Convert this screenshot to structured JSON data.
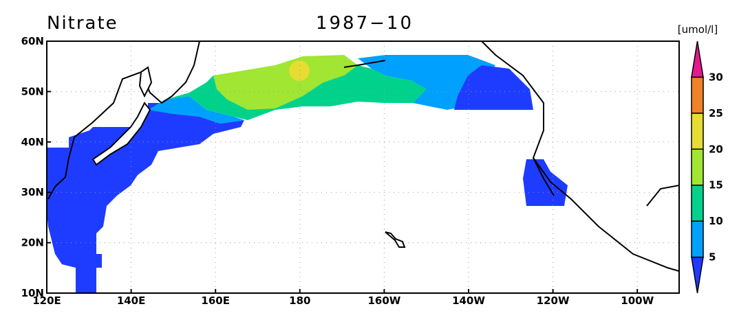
{
  "map": {
    "title": "Nitrate",
    "date": "1987−10",
    "unit": "[umol/l]",
    "lon_labels": [
      "120E",
      "140E",
      "160E",
      "180",
      "160W",
      "140W",
      "120W",
      "100W"
    ],
    "lat_labels": [
      "60N",
      "50N",
      "40N",
      "30N",
      "20N",
      "10N"
    ],
    "colorbar": {
      "levels": [
        5,
        10,
        15,
        20,
        25,
        30
      ],
      "colors": [
        "#1e3cff",
        "#00a0ff",
        "#00d28c",
        "#a0e632",
        "#e6dc32",
        "#f08228",
        "#e6198c"
      ]
    }
  }
}
